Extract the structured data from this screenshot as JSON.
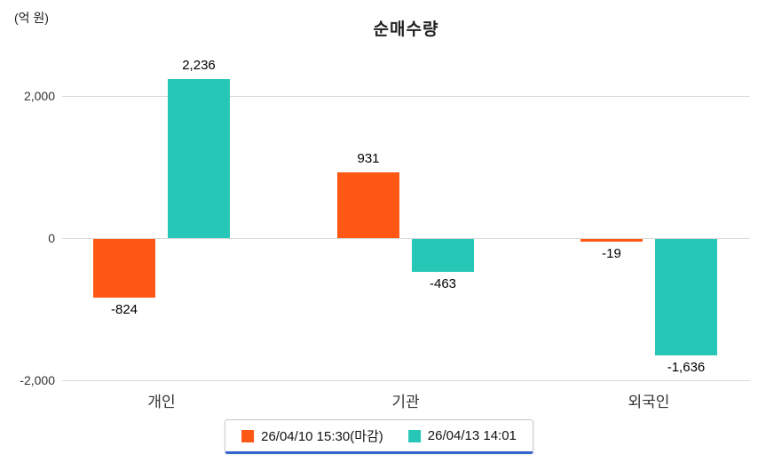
{
  "chart_data": {
    "type": "bar",
    "title": "순매수량",
    "unit_label": "(억 원)",
    "categories": [
      "개인",
      "기관",
      "외국인"
    ],
    "series": [
      {
        "name": "26/04/10 15:30(마감)",
        "color": "#ff5714",
        "values": [
          -824,
          931,
          -19
        ]
      },
      {
        "name": "26/04/13 14:01",
        "color": "#26c7b7",
        "values": [
          2236,
          -463,
          -1636
        ]
      }
    ],
    "value_labels": [
      [
        "-824",
        "931",
        "-19"
      ],
      [
        "2,236",
        "-463",
        "-1,636"
      ]
    ],
    "y_ticks": [
      2000,
      0,
      -2000
    ],
    "y_tick_labels": [
      "2,000",
      "0",
      "-2,000"
    ],
    "ylim": [
      -2000,
      2400
    ],
    "grid": true,
    "legend_position": "bottom",
    "accent_color": "#3366cc"
  }
}
